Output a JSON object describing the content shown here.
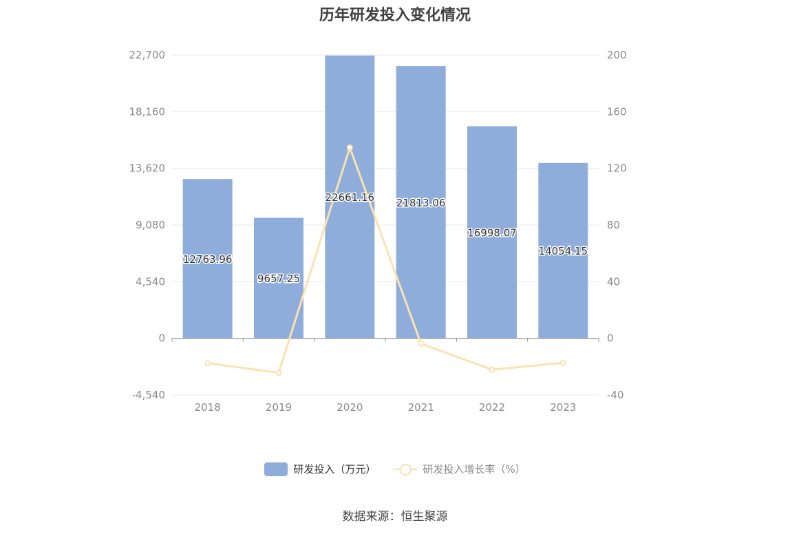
{
  "title": "历年研发投入变化情况",
  "source": "数据来源：恒生聚源",
  "legend": {
    "bar_label": "研发投入（万元）",
    "line_label": "研发投入增长率（%）"
  },
  "colors": {
    "bar": "#8eadda",
    "line": "#fde1b1",
    "grid": "#e3e7f0",
    "axis_text": "#8a8a8a"
  },
  "chart_data": {
    "type": "bar",
    "categories": [
      "2018",
      "2019",
      "2020",
      "2021",
      "2022",
      "2023"
    ],
    "series": [
      {
        "name": "研发投入（万元）",
        "type": "bar",
        "axis": "left",
        "values": [
          12763.96,
          9657.25,
          22661.16,
          21813.06,
          16998.07,
          14054.15
        ],
        "labels": [
          "12763.96",
          "9657.25",
          "22661.16",
          "21813.06",
          "16998.07",
          "14054.15"
        ]
      },
      {
        "name": "研发投入增长率（%）",
        "type": "line",
        "axis": "right",
        "values": [
          -17.5,
          -24.3,
          134.7,
          -3.7,
          -22.1,
          -17.3
        ]
      }
    ],
    "y_left": {
      "ylim": [
        -4540,
        22700
      ],
      "ticks": [
        -4540,
        0,
        4540,
        9080,
        13620,
        18160,
        22700
      ],
      "tick_labels": [
        "-4,540",
        "0",
        "4,540",
        "9,080",
        "13,620",
        "18,160",
        "22,700"
      ]
    },
    "y_right": {
      "ylim": [
        -40,
        200
      ],
      "ticks": [
        -40,
        0,
        40,
        80,
        120,
        160,
        200
      ],
      "tick_labels": [
        "-40",
        "0",
        "40",
        "80",
        "120",
        "160",
        "200"
      ]
    },
    "grid": true,
    "legend_position": "bottom"
  }
}
